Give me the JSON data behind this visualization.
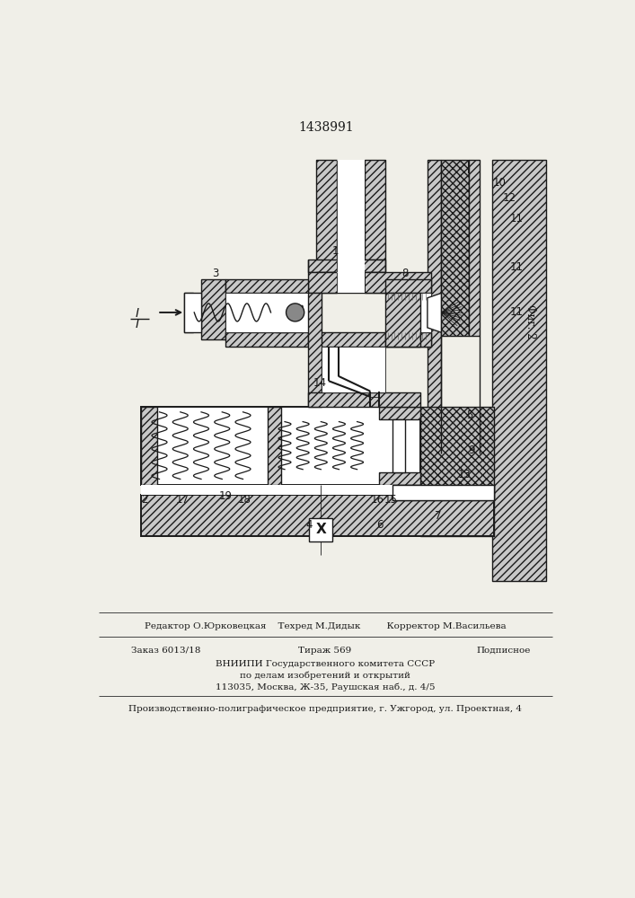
{
  "title": "1438991",
  "bg_color": "#f0efe8",
  "lc": "#1a1a1a",
  "hbg": "#d0d0d0",
  "editor_line": "Редактор О.Юрковецкая    Техред М.Дидык         Корректор М.Васильева",
  "order_text": "Заказ 6013/18",
  "tirazh_text": "Тираж 569",
  "podpisnoe_text": "Подписное",
  "institute_line1": "ВНИИПИ Государственного комитета СССР",
  "institute_line2": "по делам изобретений и открытий",
  "institute_line3": "113035, Москва, Ж-35, Раушская наб., д. 4/5",
  "print_line": "Производственно-полиграфическое предприятие, г. Ужгород, ул. Проектная, 4",
  "fig2_label": "Фиг. 2"
}
